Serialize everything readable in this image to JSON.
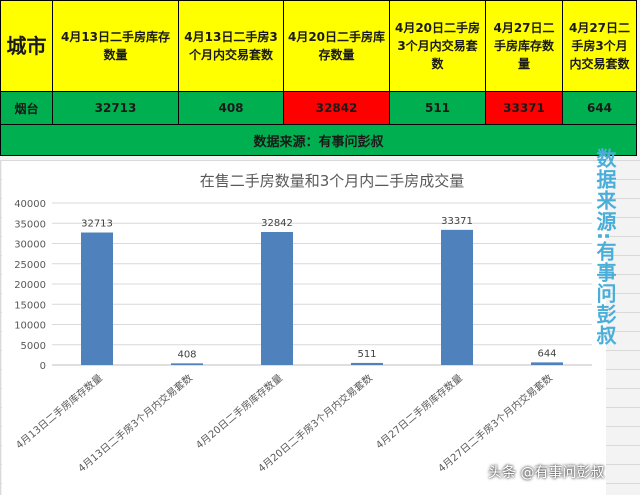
{
  "table": {
    "headers": [
      "城市",
      "4月13日二手房库存数量",
      "4月13日二手房3个月内交易套数",
      "4月20日二手房库存数量",
      "4月20日二手房3个月内交易套数",
      "4月27日二手房库存数量",
      "4月27日二手房3个月内交易套数"
    ],
    "row": [
      "烟台",
      "32713",
      "408",
      "32842",
      "511",
      "33371",
      "644"
    ],
    "source": "数据来源：有事问彭叔",
    "highlight_color": "#ff0000",
    "header_color": "#ffff00",
    "row_color": "#00b050"
  },
  "side_note": "数据来源:有事问彭叔",
  "watermark": "头条 @有事问彭叔",
  "chart_data": {
    "type": "bar",
    "title": "在售二手房数量和3个月内二手房成交量",
    "categories": [
      "4月13日二手房库存数量",
      "4月13日二手房3个月内交易套数",
      "4月20日二手房库存数量",
      "4月20日二手房3个月内交易套数",
      "4月27日二手房库存数量",
      "4月27日二手房3个月内交易套数"
    ],
    "values": [
      32713,
      408,
      32842,
      511,
      33371,
      644
    ],
    "ylim": [
      0,
      40000
    ],
    "yticks": [
      0,
      5000,
      10000,
      15000,
      20000,
      25000,
      30000,
      35000,
      40000
    ],
    "bar_color": "#4f81bd",
    "grid": true,
    "legend": "none"
  }
}
